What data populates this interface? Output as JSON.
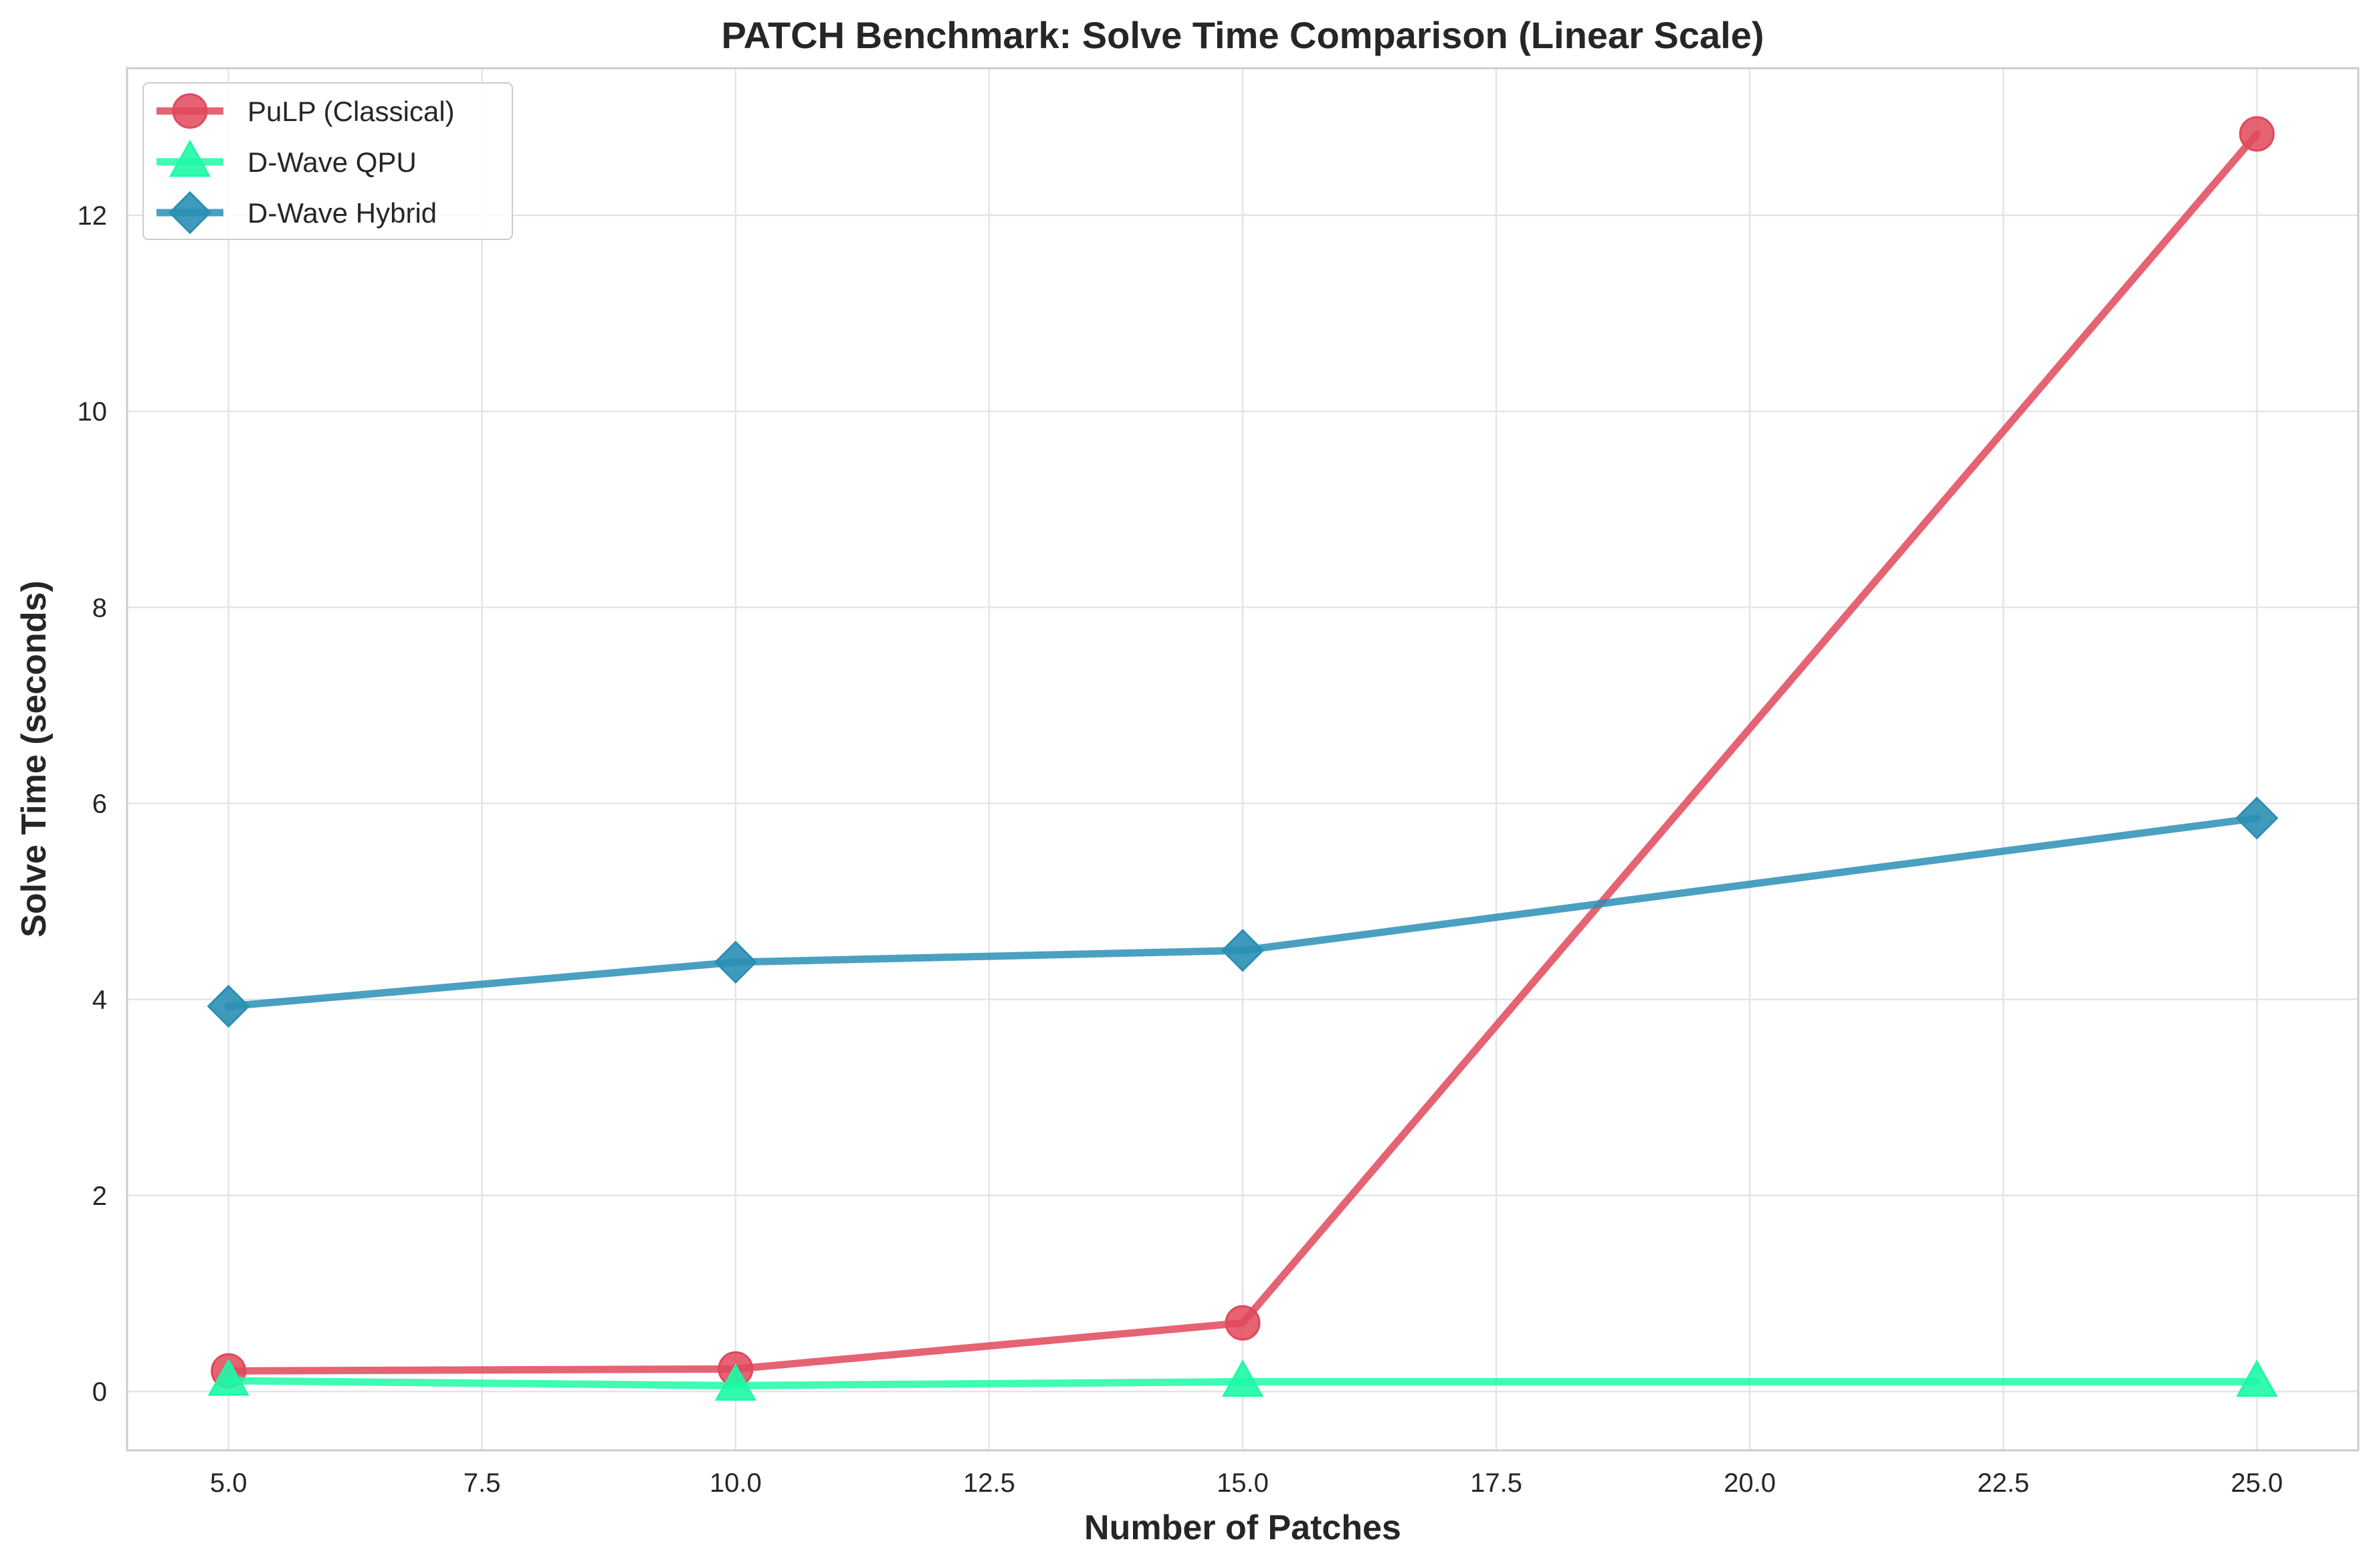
{
  "chart_data": {
    "type": "line",
    "title": "PATCH Benchmark: Solve Time Comparison (Linear Scale)",
    "xlabel": "Number of Patches",
    "ylabel": "Solve Time (seconds)",
    "xlim": [
      4.0,
      26.0
    ],
    "ylim": [
      -0.6,
      13.5
    ],
    "x_ticks": [
      5.0,
      7.5,
      10.0,
      12.5,
      15.0,
      17.5,
      20.0,
      22.5,
      25.0
    ],
    "x_tick_labels": [
      "5.0",
      "7.5",
      "10.0",
      "12.5",
      "15.0",
      "17.5",
      "20.0",
      "22.5",
      "25.0"
    ],
    "y_ticks": [
      0,
      2,
      4,
      6,
      8,
      10,
      12
    ],
    "y_tick_labels": [
      "0",
      "2",
      "4",
      "6",
      "8",
      "10",
      "12"
    ],
    "grid": true,
    "legend_position": "top-left",
    "x": [
      5,
      10,
      15,
      25
    ],
    "series": [
      {
        "name": "PuLP (Classical)",
        "values": [
          0.21,
          0.23,
          0.7,
          12.83
        ],
        "color": "#e0485a",
        "marker": "circle"
      },
      {
        "name": "D-Wave QPU",
        "values": [
          0.11,
          0.06,
          0.1,
          0.1
        ],
        "color": "#1dfaa6",
        "marker": "triangle"
      },
      {
        "name": "D-Wave Hybrid",
        "values": [
          3.93,
          4.38,
          4.5,
          5.85
        ],
        "color": "#2a8fb5",
        "marker": "diamond"
      }
    ]
  }
}
